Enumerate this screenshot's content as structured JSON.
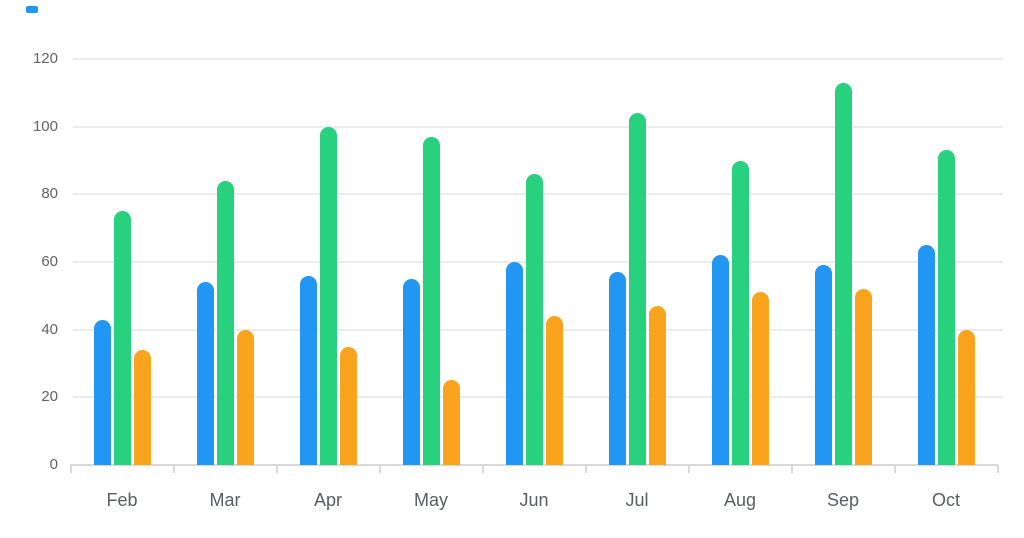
{
  "top_left_marker": {
    "color": "#2196F3"
  },
  "chart_data": {
    "type": "bar",
    "title": "",
    "xlabel": "",
    "ylabel": "",
    "categories": [
      "Feb",
      "Mar",
      "Apr",
      "May",
      "Jun",
      "Jul",
      "Aug",
      "Sep",
      "Oct"
    ],
    "series": [
      {
        "id": "blue",
        "color": "#2196F3",
        "values": [
          43,
          54,
          56,
          55,
          60,
          57,
          62,
          59,
          65
        ]
      },
      {
        "id": "green",
        "color": "#28D17D",
        "values": [
          75,
          84,
          100,
          97,
          86,
          104,
          90,
          113,
          93
        ]
      },
      {
        "id": "orange",
        "color": "#FAA41D",
        "values": [
          34,
          40,
          35,
          25,
          44,
          47,
          51,
          52,
          40
        ]
      }
    ],
    "ylim": [
      0,
      120
    ],
    "yticks": [
      0,
      20,
      40,
      60,
      80,
      100,
      120
    ],
    "grid": "horizontal",
    "legend": "none"
  }
}
